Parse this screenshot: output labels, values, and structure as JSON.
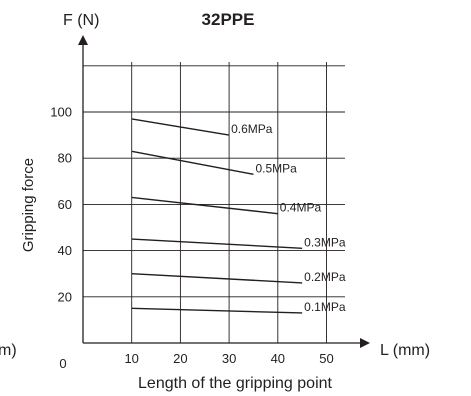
{
  "chart_data": {
    "type": "line",
    "title": "32PPE",
    "y_axis_name": "F (N)",
    "x_axis_name": "L (mm)",
    "xlabel": "Length of the gripping point",
    "ylabel": "Gripping force",
    "left_cut_label": "m)",
    "origin_label": "0",
    "xlim": [
      0,
      50
    ],
    "ylim": [
      0,
      120
    ],
    "x_grid": [
      10,
      20,
      30,
      40,
      50
    ],
    "y_grid": [
      20,
      40,
      60,
      80,
      100,
      120
    ],
    "x_ticks": [
      {
        "value": 10,
        "label": "10"
      },
      {
        "value": 20,
        "label": "20"
      },
      {
        "value": 30,
        "label": "30"
      },
      {
        "value": 40,
        "label": "40"
      },
      {
        "value": 50,
        "label": "50"
      }
    ],
    "y_ticks": [
      {
        "value": 20,
        "label": "20"
      },
      {
        "value": 40,
        "label": "40"
      },
      {
        "value": 60,
        "label": "60"
      },
      {
        "value": 80,
        "label": "80"
      },
      {
        "value": 100,
        "label": "100"
      }
    ],
    "series": [
      {
        "name": "0.6MPa",
        "x": [
          10,
          30
        ],
        "y": [
          97,
          90
        ]
      },
      {
        "name": "0.5MPa",
        "x": [
          10,
          35
        ],
        "y": [
          83,
          73
        ]
      },
      {
        "name": "0.4MPa",
        "x": [
          10,
          40
        ],
        "y": [
          63,
          56
        ]
      },
      {
        "name": "0.3MPa",
        "x": [
          10,
          45
        ],
        "y": [
          45,
          41
        ]
      },
      {
        "name": "0.2MPa",
        "x": [
          10,
          45
        ],
        "y": [
          30,
          26
        ]
      },
      {
        "name": "0.1MPa",
        "x": [
          10,
          45
        ],
        "y": [
          15,
          13
        ]
      }
    ],
    "grid": true,
    "colors": {
      "line": "#231f20",
      "grid": "#231f20"
    }
  }
}
